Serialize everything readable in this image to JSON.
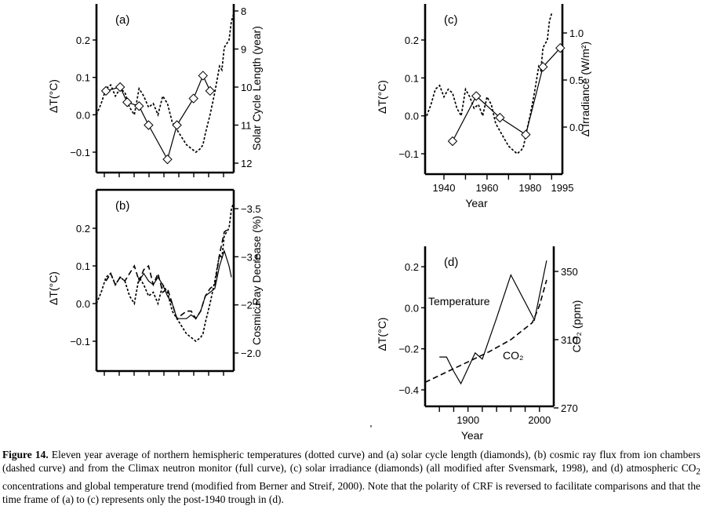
{
  "chart_data": [
    {
      "panel": "(a)",
      "type": "line",
      "ylabel": "ΔT(°C)",
      "ylabel_right": "Solar Cycle Length (year)",
      "y_ticks": [
        "0.2",
        "0.1",
        "0.0",
        "−0.1"
      ],
      "y_right_ticks": [
        "8",
        "9",
        "10",
        "11",
        "12"
      ],
      "series": [
        {
          "style": "dotted",
          "axis": "left",
          "x": [
            1932,
            1934,
            1936,
            1938,
            1940,
            1942,
            1944,
            1946,
            1948,
            1950,
            1952,
            1954,
            1956,
            1958,
            1960,
            1962,
            1964,
            1966,
            1968,
            1970,
            1972,
            1974,
            1976,
            1977,
            1978,
            1980,
            1982,
            1984,
            1985,
            1986,
            1988,
            1989,
            1990
          ],
          "y": [
            0.0,
            0.03,
            0.07,
            0.08,
            0.05,
            0.07,
            0.06,
            0.02,
            0.0,
            0.07,
            0.05,
            0.02,
            0.03,
            0.0,
            0.05,
            0.03,
            -0.02,
            -0.04,
            -0.06,
            -0.08,
            -0.09,
            -0.1,
            -0.09,
            -0.08,
            -0.05,
            0.0,
            0.06,
            0.13,
            0.12,
            0.18,
            0.2,
            0.25,
            0.27
          ]
        },
        {
          "style": "solid-diamonds",
          "axis": "right",
          "x": [
            1936,
            1942,
            1945,
            1950,
            1954,
            1962,
            1966,
            1973,
            1977,
            1980
          ],
          "y": [
            10.1,
            10.0,
            10.4,
            10.5,
            11.0,
            11.9,
            11.0,
            10.3,
            9.7,
            10.1
          ]
        }
      ]
    },
    {
      "panel": "(b)",
      "type": "line",
      "ylabel": "ΔT(°C)",
      "ylabel_right": "Cosmic Ray Decrease (%)",
      "y_ticks": [
        "0.2",
        "0.1",
        "0.0",
        "−0.1"
      ],
      "y_right_ticks": [
        "−3.5",
        "−3.0",
        "−2.5",
        "−2.0"
      ],
      "series": [
        {
          "style": "dotted",
          "axis": "left",
          "x": [
            1932,
            1934,
            1936,
            1938,
            1940,
            1942,
            1944,
            1946,
            1948,
            1950,
            1952,
            1954,
            1956,
            1958,
            1960,
            1962,
            1964,
            1966,
            1968,
            1970,
            1972,
            1974,
            1976,
            1977,
            1978,
            1980,
            1982,
            1984,
            1985,
            1986,
            1988,
            1989,
            1990
          ],
          "y": [
            0.0,
            0.03,
            0.07,
            0.08,
            0.05,
            0.07,
            0.06,
            0.02,
            0.0,
            0.07,
            0.05,
            0.02,
            0.03,
            0.0,
            0.05,
            0.03,
            -0.02,
            -0.04,
            -0.06,
            -0.08,
            -0.09,
            -0.1,
            -0.09,
            -0.08,
            -0.05,
            0.0,
            0.06,
            0.13,
            0.12,
            0.18,
            0.2,
            0.25,
            0.27
          ]
        },
        {
          "style": "dashed",
          "axis": "left",
          "x": [
            1936,
            1938,
            1940,
            1942,
            1944,
            1946,
            1948,
            1950,
            1952,
            1954,
            1956,
            1958,
            1960,
            1962,
            1964,
            1966,
            1968,
            1970,
            1972,
            1974,
            1976,
            1978,
            1980,
            1982,
            1984,
            1986,
            1988
          ],
          "y": [
            0.06,
            0.08,
            0.05,
            0.07,
            0.06,
            0.08,
            0.1,
            0.06,
            0.09,
            0.1,
            0.05,
            0.08,
            0.03,
            0.04,
            0.0,
            -0.04,
            -0.03,
            -0.02,
            -0.02,
            -0.04,
            -0.02,
            0.02,
            0.04,
            0.05,
            0.13,
            0.19,
            0.2
          ]
        },
        {
          "style": "solid",
          "axis": "left",
          "x": [
            1950,
            1952,
            1954,
            1956,
            1958,
            1960,
            1962,
            1964,
            1966,
            1968,
            1970,
            1972,
            1974,
            1976,
            1978,
            1980,
            1982,
            1984,
            1986,
            1988,
            1989
          ],
          "y": [
            0.06,
            0.08,
            0.06,
            0.05,
            0.07,
            0.05,
            0.02,
            0.0,
            -0.04,
            -0.04,
            -0.04,
            -0.03,
            -0.04,
            -0.02,
            0.02,
            0.03,
            0.04,
            0.1,
            0.14,
            0.1,
            0.07
          ]
        }
      ]
    },
    {
      "panel": "(c)",
      "type": "line",
      "ylabel": "ΔT(°C)",
      "ylabel_right": "Δ Irradiance (W/m²)",
      "xlabel": "Year",
      "categories": [
        "1940",
        "1960",
        "1980",
        "1995"
      ],
      "x_ticks": [
        1940,
        1960,
        1980,
        1995
      ],
      "y_ticks": [
        "0.2",
        "0.1",
        "0.0",
        "−0.1"
      ],
      "y_right_ticks": [
        "1.0",
        "0.5",
        "0.0"
      ],
      "series": [
        {
          "style": "dotted",
          "axis": "left",
          "x": [
            1932,
            1934,
            1936,
            1938,
            1940,
            1942,
            1944,
            1946,
            1948,
            1950,
            1952,
            1954,
            1956,
            1958,
            1960,
            1962,
            1964,
            1966,
            1968,
            1970,
            1972,
            1974,
            1976,
            1977,
            1978,
            1980,
            1982,
            1984,
            1985,
            1986,
            1988,
            1989,
            1990
          ],
          "y": [
            0.0,
            0.03,
            0.07,
            0.08,
            0.05,
            0.07,
            0.06,
            0.02,
            0.0,
            0.07,
            0.05,
            0.02,
            0.03,
            0.0,
            0.05,
            0.03,
            -0.02,
            -0.04,
            -0.06,
            -0.08,
            -0.09,
            -0.1,
            -0.09,
            -0.08,
            -0.05,
            0.0,
            0.06,
            0.13,
            0.12,
            0.18,
            0.2,
            0.25,
            0.27
          ]
        },
        {
          "style": "solid-diamonds",
          "axis": "right",
          "x": [
            1944,
            1955,
            1966,
            1978,
            1986,
            1994
          ],
          "y": [
            -0.15,
            0.33,
            0.1,
            -0.08,
            0.64,
            0.84
          ]
        }
      ]
    },
    {
      "panel": "(d)",
      "type": "line",
      "ylabel": "ΔT(°C)",
      "ylabel_right": "CO₂ (ppm)",
      "xlabel": "Year",
      "categories": [
        "1900",
        "2000"
      ],
      "x_ticks": [
        1900,
        2000
      ],
      "y_ticks": [
        "0.2",
        "0.0",
        "−0.2",
        "−0.4"
      ],
      "y_right_ticks": [
        "350",
        "310",
        "270"
      ],
      "annotations": [
        "Temperature",
        "CO₂"
      ],
      "series": [
        {
          "name": "Temperature",
          "style": "solid",
          "axis": "left",
          "x": [
            1860,
            1870,
            1880,
            1890,
            1910,
            1920,
            1940,
            1960,
            1993,
            2010
          ],
          "y": [
            -0.24,
            -0.24,
            -0.31,
            -0.37,
            -0.22,
            -0.25,
            -0.05,
            0.16,
            -0.06,
            0.23
          ]
        },
        {
          "name": "CO₂",
          "style": "dashed",
          "axis": "right",
          "x": [
            1840,
            1870,
            1900,
            1930,
            1960,
            1990,
            2000,
            2010
          ],
          "y": [
            285,
            291,
            297,
            303,
            310,
            320,
            330,
            345
          ]
        }
      ]
    }
  ],
  "marker": "'",
  "caption": {
    "label": "Figure 14.",
    "pre_co2": " Eleven year average of northern hemispheric temperatures (dotted curve) and (a) solar cycle length (diamonds), (b) cosmic ray flux from ion chambers (dashed curve) and from the Climax neutron monitor (full curve), (c) solar irradiance (diamonds) (all modified after Svensmark, 1998), and (d) atmospheric CO",
    "co2_sub": "2",
    "post_co2": " concentrations and global temperature trend (modified from Berner and Streif, 2000). Note that the polarity of CRF is reversed to facilitate comparisons and that the time frame of (a) to (c) represents only the post-1940 trough in (d)."
  }
}
